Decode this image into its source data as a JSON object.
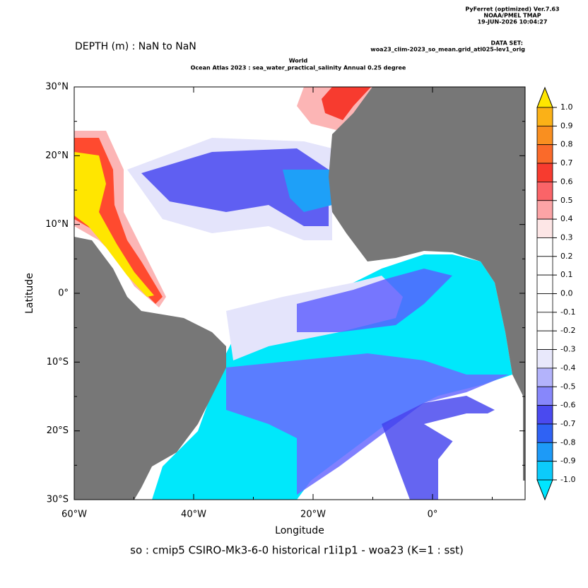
{
  "header": {
    "software": "PyFerret (optimized) Ver.7.63",
    "org": "NOAA/PMEL TMAP",
    "timestamp": "19-JUN-2026 10:04:27",
    "dataset_label": "DATA SET:",
    "dataset": "woa23_clim-2023_so_mean.grid_atl025-lev1_orig"
  },
  "depth": "DEPTH (m) : NaN to NaN",
  "title": {
    "line1": "World",
    "line2": "Ocean Atlas 2023 : sea_water_practical_salinity Annual  0.25 degree"
  },
  "map": {
    "x_label": "Longitude",
    "y_label": "Latitude",
    "x_ticks": [
      "60°W",
      "40°W",
      "20°W",
      "0°"
    ],
    "y_ticks": [
      "30°N",
      "20°N",
      "10°N",
      "0°",
      "10°S",
      "20°S",
      "30°S"
    ]
  },
  "colorbar": {
    "labels": [
      "1.0",
      "0.9",
      "0.8",
      "0.7",
      "0.6",
      "0.5",
      "0.4",
      "0.3",
      "0.2",
      "0.1",
      "0.0",
      "-0.1",
      "-0.2",
      "-0.3",
      "-0.4",
      "-0.5",
      "-0.6",
      "-0.7",
      "-0.8",
      "-0.9",
      "-1.0"
    ],
    "over_color": "#ffe600",
    "under_color": "#00e6ff",
    "colors": [
      "#fbb117",
      "#f98f20",
      "#fa6a2a",
      "#f73b2f",
      "#fa6468",
      "#fca4a6",
      "#fde6e6",
      "#ffffff",
      "#ffffff",
      "#ffffff",
      "#ffffff",
      "#ffffff",
      "#ffffff",
      "#e8e8fb",
      "#b3b3fb",
      "#8787fb",
      "#4a4aef",
      "#2f62f4",
      "#1d9af7",
      "#0ccbfb"
    ]
  },
  "footer": "so : cmip5 CSIRO-Mk3-6-0 historical r1i1p1 - woa23  (K=1 : sst)"
}
